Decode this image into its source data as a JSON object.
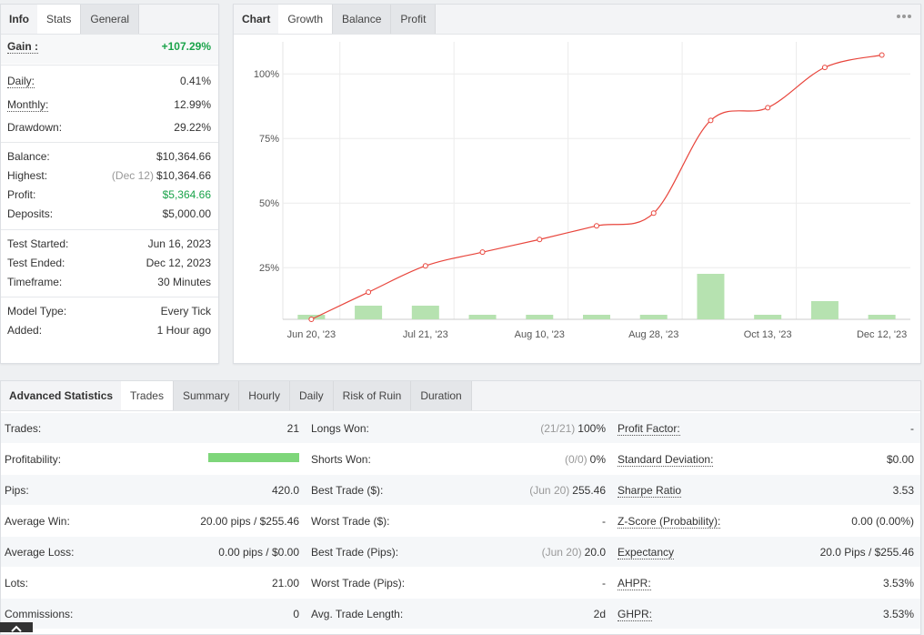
{
  "info_panel": {
    "title": "Info",
    "tabs": [
      "Stats",
      "General"
    ],
    "active_tab": 0,
    "groups": [
      [
        {
          "label": "Gain :",
          "value": "+107.29%",
          "emphasis": true,
          "positive": true,
          "underline": true
        }
      ],
      [
        {
          "label": "Daily:",
          "value": "0.41%",
          "underline": true
        },
        {
          "label": "Monthly:",
          "value": "12.99%",
          "underline": true
        },
        {
          "label": "Drawdown:",
          "value": "29.22%"
        }
      ],
      [
        {
          "label": "Balance:",
          "value": "$10,364.66"
        },
        {
          "label": "Highest:",
          "note": "(Dec 12)",
          "value": "$10,364.66"
        },
        {
          "label": "Profit:",
          "value": "$5,364.66",
          "positive": true
        },
        {
          "label": "Deposits:",
          "value": "$5,000.00"
        }
      ],
      [
        {
          "label": "Test Started:",
          "value": "Jun 16, 2023"
        },
        {
          "label": "Test Ended:",
          "value": "Dec 12, 2023"
        },
        {
          "label": "Timeframe:",
          "value": "30 Minutes"
        }
      ],
      [
        {
          "label": "Model Type:",
          "value": "Every Tick"
        },
        {
          "label": "Added:",
          "value": "1 Hour ago"
        }
      ]
    ]
  },
  "chart_panel": {
    "title": "Chart",
    "tabs": [
      "Growth",
      "Balance",
      "Profit"
    ],
    "active_tab": 0,
    "chart_data": {
      "type": "line",
      "categories": [
        "Jun 20, '23",
        null,
        "Jul 21, '23",
        null,
        "Aug 10, '23",
        null,
        "Aug 28, '23",
        null,
        "Oct 13, '23",
        null,
        "Dec 12, '23"
      ],
      "series": [
        {
          "type": "line",
          "color": "#e8453c",
          "values": [
            5,
            15.5,
            25.7,
            31,
            35.9,
            41.2,
            46.1,
            82,
            86.9,
            102.5,
            107.29
          ]
        },
        {
          "type": "bar",
          "color": "#b6e2b0",
          "axis": "y2",
          "values": [
            1,
            3,
            3,
            1,
            1,
            1,
            1,
            10,
            1,
            4,
            1
          ]
        }
      ],
      "ylim": [
        5,
        112.4
      ],
      "yticks": [
        {
          "value": 25,
          "label": "25%"
        },
        {
          "value": 50,
          "label": "50%"
        },
        {
          "value": 75,
          "label": "75%"
        },
        {
          "value": 100,
          "label": "100%"
        }
      ],
      "y2lim": [
        0,
        61
      ],
      "grid": true
    }
  },
  "statistics_panel": {
    "title": "Advanced Statistics",
    "tabs": [
      "Trades",
      "Summary",
      "Hourly",
      "Daily",
      "Risk of Ruin",
      "Duration"
    ],
    "active_tab": 0,
    "rows": [
      [
        {
          "label": "Trades:",
          "value": "21"
        },
        {
          "label": "Longs Won:",
          "note": "(21/21)",
          "value": "100%"
        },
        {
          "label": "Profit Factor:",
          "value": "-"
        }
      ],
      [
        {
          "label": "Profitability:",
          "bar": 100,
          "bar_color": "#7ed67a"
        },
        {
          "label": "Shorts Won:",
          "note": "(0/0)",
          "value": "0%"
        },
        {
          "label": "Standard Deviation:",
          "value": "$0.00"
        }
      ],
      [
        {
          "label": "Pips:",
          "value": "420.0"
        },
        {
          "label": "Best Trade ($):",
          "note": "(Jun 20)",
          "value": "255.46"
        },
        {
          "label": "Sharpe Ratio",
          "value": "3.53"
        }
      ],
      [
        {
          "label": "Average Win:",
          "value": "20.00 pips / $255.46"
        },
        {
          "label": "Worst Trade ($):",
          "value": "-"
        },
        {
          "label": "Z-Score (Probability):",
          "value": "0.00 (0.00%)"
        }
      ],
      [
        {
          "label": "Average Loss:",
          "value": "0.00 pips / $0.00"
        },
        {
          "label": "Best Trade (Pips):",
          "note": "(Jun 20)",
          "value": "20.0"
        },
        {
          "label": "Expectancy",
          "value": "20.0 Pips / $255.46"
        }
      ],
      [
        {
          "label": "Lots:",
          "value": "21.00"
        },
        {
          "label": "Worst Trade (Pips):",
          "value": "-"
        },
        {
          "label": "AHPR:",
          "value": "3.53%"
        }
      ],
      [
        {
          "label": "Commissions:",
          "value": "0"
        },
        {
          "label": "Avg. Trade Length:",
          "value": "2d"
        },
        {
          "label": "GHPR:",
          "value": "3.53%"
        }
      ]
    ]
  }
}
